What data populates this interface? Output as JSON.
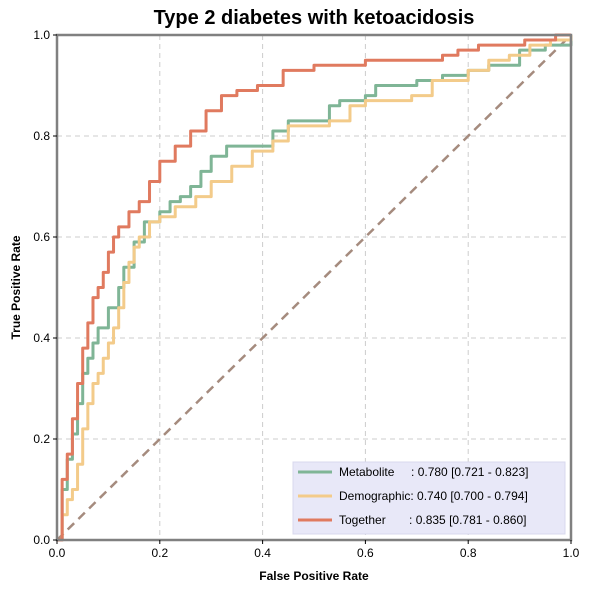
{
  "chart_data": {
    "type": "line",
    "title": "Type 2 diabetes with ketoacidosis",
    "xlabel": "False Positive Rate",
    "ylabel": "True Positive Rate",
    "xlim": [
      0,
      1
    ],
    "ylim": [
      0,
      1
    ],
    "xticks": [
      "0.0",
      "0.2",
      "0.4",
      "0.6",
      "0.8",
      "1.0"
    ],
    "yticks": [
      "0.0",
      "0.2",
      "0.4",
      "0.6",
      "0.8",
      "1.0"
    ],
    "grid": true,
    "legend_position": "bottom-right",
    "reference_line": {
      "x": [
        0,
        1
      ],
      "y": [
        0,
        1
      ],
      "color": "#a58b7e",
      "style": "dashed"
    },
    "series": [
      {
        "name": "Metabolite",
        "label": "Metabolite     : 0.780 [0.721 - 0.823]",
        "color": "#7fb596",
        "points": [
          [
            0,
            0
          ],
          [
            0.01,
            0.1
          ],
          [
            0.02,
            0.16
          ],
          [
            0.03,
            0.21
          ],
          [
            0.04,
            0.27
          ],
          [
            0.05,
            0.33
          ],
          [
            0.06,
            0.36
          ],
          [
            0.07,
            0.39
          ],
          [
            0.08,
            0.42
          ],
          [
            0.1,
            0.46
          ],
          [
            0.12,
            0.5
          ],
          [
            0.13,
            0.54
          ],
          [
            0.15,
            0.59
          ],
          [
            0.17,
            0.63
          ],
          [
            0.2,
            0.65
          ],
          [
            0.22,
            0.67
          ],
          [
            0.24,
            0.68
          ],
          [
            0.26,
            0.7
          ],
          [
            0.28,
            0.73
          ],
          [
            0.3,
            0.76
          ],
          [
            0.33,
            0.78
          ],
          [
            0.38,
            0.78
          ],
          [
            0.42,
            0.81
          ],
          [
            0.45,
            0.83
          ],
          [
            0.52,
            0.83
          ],
          [
            0.53,
            0.86
          ],
          [
            0.55,
            0.87
          ],
          [
            0.6,
            0.88
          ],
          [
            0.62,
            0.9
          ],
          [
            0.7,
            0.91
          ],
          [
            0.75,
            0.92
          ],
          [
            0.8,
            0.93
          ],
          [
            0.84,
            0.94
          ],
          [
            0.9,
            0.97
          ],
          [
            0.93,
            0.97
          ],
          [
            0.95,
            0.98
          ],
          [
            1,
            1
          ]
        ]
      },
      {
        "name": "Demographic",
        "label": "Demographic: 0.740 [0.700 - 0.794]",
        "color": "#f3cb8a",
        "points": [
          [
            0,
            0
          ],
          [
            0.01,
            0.05
          ],
          [
            0.02,
            0.08
          ],
          [
            0.03,
            0.1
          ],
          [
            0.04,
            0.15
          ],
          [
            0.05,
            0.22
          ],
          [
            0.06,
            0.27
          ],
          [
            0.07,
            0.31
          ],
          [
            0.08,
            0.33
          ],
          [
            0.09,
            0.36
          ],
          [
            0.1,
            0.39
          ],
          [
            0.11,
            0.42
          ],
          [
            0.12,
            0.46
          ],
          [
            0.13,
            0.51
          ],
          [
            0.14,
            0.55
          ],
          [
            0.15,
            0.58
          ],
          [
            0.16,
            0.6
          ],
          [
            0.18,
            0.63
          ],
          [
            0.2,
            0.64
          ],
          [
            0.23,
            0.66
          ],
          [
            0.27,
            0.68
          ],
          [
            0.3,
            0.71
          ],
          [
            0.34,
            0.74
          ],
          [
            0.38,
            0.77
          ],
          [
            0.42,
            0.79
          ],
          [
            0.45,
            0.82
          ],
          [
            0.53,
            0.83
          ],
          [
            0.57,
            0.86
          ],
          [
            0.6,
            0.87
          ],
          [
            0.64,
            0.87
          ],
          [
            0.69,
            0.88
          ],
          [
            0.73,
            0.91
          ],
          [
            0.8,
            0.93
          ],
          [
            0.84,
            0.95
          ],
          [
            0.88,
            0.96
          ],
          [
            0.92,
            0.98
          ],
          [
            0.96,
            0.99
          ],
          [
            1,
            1
          ]
        ]
      },
      {
        "name": "Together",
        "label": "Together       : 0.835 [0.781 - 0.860]",
        "color": "#e07a5f",
        "points": [
          [
            0,
            0
          ],
          [
            0.01,
            0.12
          ],
          [
            0.02,
            0.17
          ],
          [
            0.03,
            0.24
          ],
          [
            0.04,
            0.31
          ],
          [
            0.05,
            0.38
          ],
          [
            0.06,
            0.43
          ],
          [
            0.07,
            0.48
          ],
          [
            0.08,
            0.5
          ],
          [
            0.09,
            0.53
          ],
          [
            0.1,
            0.57
          ],
          [
            0.11,
            0.6
          ],
          [
            0.12,
            0.62
          ],
          [
            0.14,
            0.65
          ],
          [
            0.16,
            0.67
          ],
          [
            0.18,
            0.71
          ],
          [
            0.2,
            0.75
          ],
          [
            0.23,
            0.78
          ],
          [
            0.26,
            0.81
          ],
          [
            0.29,
            0.85
          ],
          [
            0.32,
            0.88
          ],
          [
            0.35,
            0.89
          ],
          [
            0.39,
            0.9
          ],
          [
            0.44,
            0.93
          ],
          [
            0.49,
            0.93
          ],
          [
            0.5,
            0.94
          ],
          [
            0.57,
            0.94
          ],
          [
            0.6,
            0.95
          ],
          [
            0.65,
            0.95
          ],
          [
            0.7,
            0.95
          ],
          [
            0.75,
            0.96
          ],
          [
            0.78,
            0.97
          ],
          [
            0.8,
            0.97
          ],
          [
            0.82,
            0.98
          ],
          [
            0.84,
            0.98
          ],
          [
            0.88,
            0.98
          ],
          [
            0.91,
            0.99
          ],
          [
            0.93,
            0.99
          ],
          [
            0.97,
            1.0
          ],
          [
            1,
            1
          ]
        ]
      }
    ]
  }
}
